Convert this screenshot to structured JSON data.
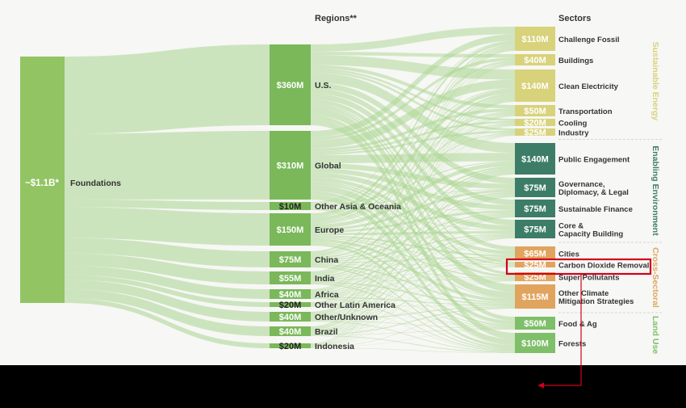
{
  "headers": {
    "regions": "Regions**",
    "sectors": "Sectors"
  },
  "source": {
    "value": "~$1.1B*",
    "label": "Foundations",
    "color": "#92c464"
  },
  "regions": [
    {
      "value": "$360M",
      "label": "U.S."
    },
    {
      "value": "$310M",
      "label": "Global"
    },
    {
      "value": "$10M",
      "label": "Other Asia & Oceania"
    },
    {
      "value": "$150M",
      "label": "Europe"
    },
    {
      "value": "$75M",
      "label": "China"
    },
    {
      "value": "$55M",
      "label": "India"
    },
    {
      "value": "$40M",
      "label": "Africa"
    },
    {
      "value": "$20M",
      "label": "Other Latin America"
    },
    {
      "value": "$40M",
      "label": "Other/Unknown"
    },
    {
      "value": "$40M",
      "label": "Brazil"
    },
    {
      "value": "$20M",
      "label": "Indonesia"
    }
  ],
  "sector_groups": [
    {
      "name": "Sustainable Energy",
      "color": "#d8d27a"
    },
    {
      "name": "Enabling Environment",
      "color": "#3d7d68"
    },
    {
      "name": "Cross-Sectoral",
      "color": "#e0a45e"
    },
    {
      "name": "Land Use",
      "color": "#7fbf6a"
    }
  ],
  "sectors": [
    {
      "value": "$110M",
      "label": "Challenge Fossil",
      "group": 0
    },
    {
      "value": "$40M",
      "label": "Buildings",
      "group": 0
    },
    {
      "value": "$140M",
      "label": "Clean Electricity",
      "group": 0
    },
    {
      "value": "$50M",
      "label": "Transportation",
      "group": 0
    },
    {
      "value": "$20M",
      "label": "Cooling",
      "group": 0
    },
    {
      "value": "$25M",
      "label": "Industry",
      "group": 0
    },
    {
      "value": "$140M",
      "label": "Public Engagement",
      "group": 1
    },
    {
      "value": "$75M",
      "label": "Governance, Diplomacy, & Legal",
      "group": 1
    },
    {
      "value": "$75M",
      "label": "Sustainable Finance",
      "group": 1
    },
    {
      "value": "$75M",
      "label": "Core & Capacity Building",
      "group": 1
    },
    {
      "value": "$65M",
      "label": "Cities",
      "group": 2
    },
    {
      "value": "$25M",
      "label": "Carbon Dioxide Removal",
      "group": 2
    },
    {
      "value": "$25M",
      "label": "Super Pollutants",
      "group": 2
    },
    {
      "value": "$115M",
      "label": "Other Climate Mitigation Strategies",
      "group": 2
    },
    {
      "value": "$50M",
      "label": "Food & Ag",
      "group": 3
    },
    {
      "value": "$100M",
      "label": "Forests",
      "group": 3
    }
  ],
  "colors": {
    "region_node": "#7ab85a",
    "flow": "#a9d68f",
    "highlight": "#d0021b"
  }
}
